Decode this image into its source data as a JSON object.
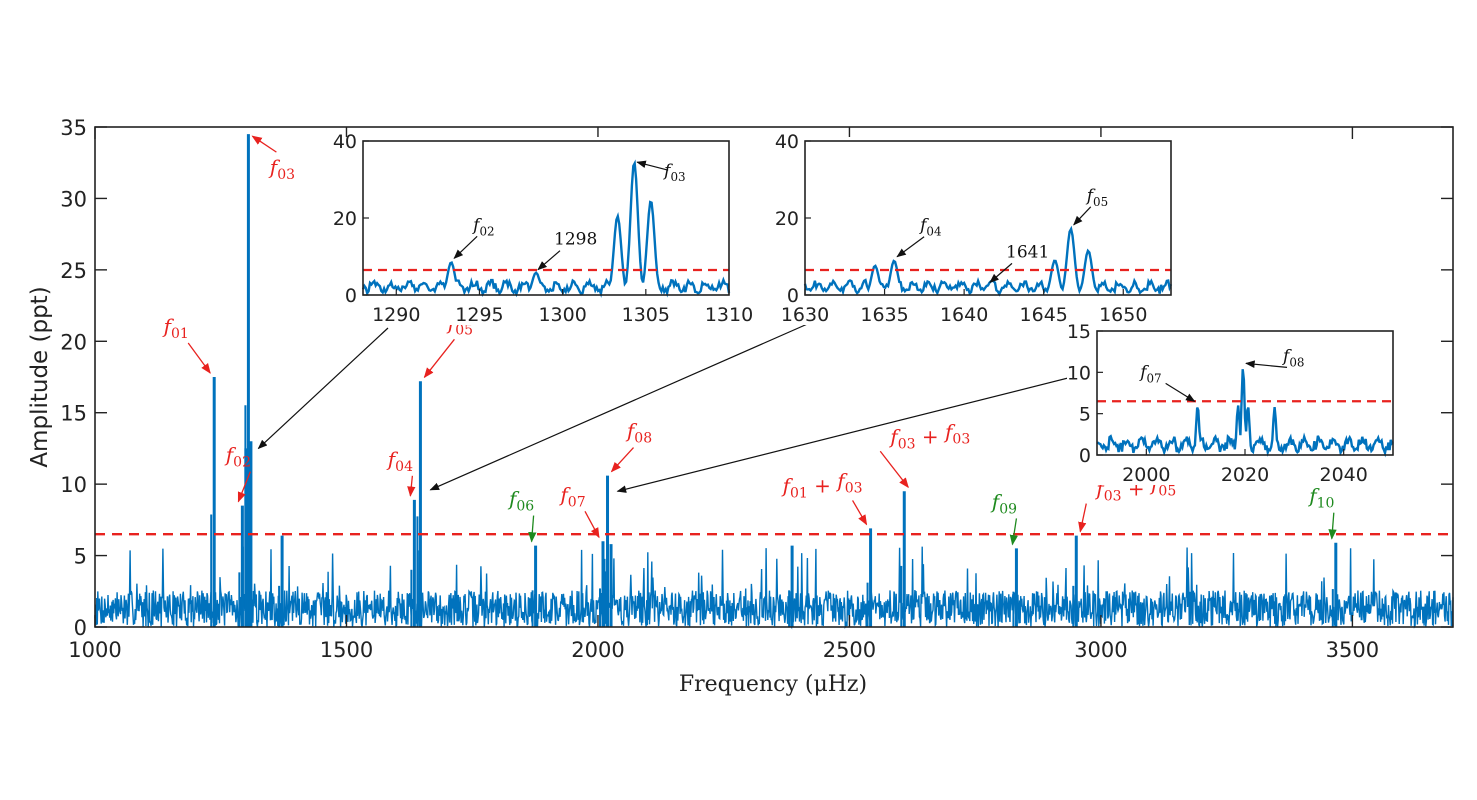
{
  "chart_data": {
    "type": "line",
    "xlabel": "Frequency (μHz)",
    "ylabel": "Amplitude (ppt)",
    "xlim": [
      1000,
      3700
    ],
    "ylim": [
      0,
      35
    ],
    "xticks": [
      1000,
      1500,
      2000,
      2500,
      3000,
      3500
    ],
    "yticks": [
      0,
      5,
      10,
      15,
      20,
      25,
      30,
      35
    ],
    "threshold": 6.5,
    "line_color": "#0072BD",
    "threshold_color": "#E8221F",
    "noise_level": 1.6,
    "peaks": [
      {
        "x": 1237,
        "y": 17.5
      },
      {
        "x": 1293,
        "y": 8.5
      },
      {
        "x": 1305,
        "y": 34.5
      },
      {
        "x": 1300,
        "y": 12.5
      },
      {
        "x": 1310,
        "y": 13.0
      },
      {
        "x": 1372,
        "y": 6.4
      },
      {
        "x": 1635,
        "y": 8.9
      },
      {
        "x": 1647,
        "y": 17.2
      },
      {
        "x": 1876,
        "y": 5.7
      },
      {
        "x": 2010,
        "y": 6.0
      },
      {
        "x": 2019,
        "y": 10.6
      },
      {
        "x": 2026,
        "y": 5.8
      },
      {
        "x": 2386,
        "y": 5.7
      },
      {
        "x": 2542,
        "y": 6.9
      },
      {
        "x": 2609,
        "y": 9.5
      },
      {
        "x": 2832,
        "y": 5.5
      },
      {
        "x": 2951,
        "y": 6.4
      },
      {
        "x": 3467,
        "y": 5.9
      }
    ],
    "annotations": [
      {
        "base": "f",
        "sub": "01",
        "color": "red",
        "x": 1237,
        "y": 17.5
      },
      {
        "base": "f",
        "sub": "02",
        "color": "red",
        "x": 1293,
        "y": 8.5
      },
      {
        "base": "f",
        "sub": "03",
        "color": "red",
        "x": 1305,
        "y": 34.5
      },
      {
        "base": "f",
        "sub": "04",
        "color": "red",
        "x": 1635,
        "y": 8.9
      },
      {
        "base": "f",
        "sub": "05",
        "color": "red",
        "x": 1647,
        "y": 17.2
      },
      {
        "base": "f",
        "sub": "06",
        "color": "green",
        "x": 1876,
        "y": 5.7
      },
      {
        "base": "f",
        "sub": "07",
        "color": "red",
        "x": 2010,
        "y": 6.0
      },
      {
        "base": "f",
        "sub": "08",
        "color": "red",
        "x": 2019,
        "y": 10.6
      },
      {
        "base": "f",
        "sub": "09",
        "color": "green",
        "x": 2832,
        "y": 5.5
      },
      {
        "base": "f",
        "sub": "10",
        "color": "green",
        "x": 3467,
        "y": 5.9
      }
    ],
    "combos": [
      {
        "parts": [
          "f",
          "01",
          " + ",
          "f",
          "03"
        ],
        "x": 2542,
        "y": 6.9
      },
      {
        "parts": [
          "f",
          "03",
          " + ",
          "f",
          "03"
        ],
        "x": 2609,
        "y": 9.5
      },
      {
        "parts": [
          "f",
          "03",
          " + ",
          "f",
          "05"
        ],
        "x": 2951,
        "y": 6.4
      }
    ],
    "insets": [
      {
        "name": "inset-1",
        "xlim": [
          1288,
          1310
        ],
        "ylim": [
          0,
          40
        ],
        "xticks": [
          1290,
          1295,
          1300,
          1305,
          1310
        ],
        "yticks": [
          0,
          20,
          40
        ],
        "threshold": 6.5,
        "peaks": [
          {
            "x": 1293.3,
            "y": 8.5
          },
          {
            "x": 1303.3,
            "y": 20.5
          },
          {
            "x": 1304.3,
            "y": 34.5
          },
          {
            "x": 1305.3,
            "y": 24.5
          },
          {
            "x": 1298.4,
            "y": 5.8
          }
        ],
        "labels": [
          {
            "base": "f",
            "sub": "02",
            "x": 1293.3,
            "y": 8.5
          },
          {
            "base": "f",
            "sub": "03",
            "x": 1304.3,
            "y": 34.5
          }
        ],
        "number_labels": [
          {
            "text": "1298",
            "x": 1298.4,
            "y": 5.8
          }
        ]
      },
      {
        "name": "inset-2",
        "xlim": [
          1630,
          1653
        ],
        "ylim": [
          0,
          40
        ],
        "xticks": [
          1630,
          1635,
          1640,
          1645,
          1650
        ],
        "yticks": [
          0,
          20,
          40
        ],
        "threshold": 6.5,
        "peaks": [
          {
            "x": 1634.4,
            "y": 7.6
          },
          {
            "x": 1635.6,
            "y": 8.9
          },
          {
            "x": 1641.5,
            "y": 2.5
          },
          {
            "x": 1645.7,
            "y": 9.0
          },
          {
            "x": 1646.7,
            "y": 17.2
          },
          {
            "x": 1647.8,
            "y": 11.5
          }
        ],
        "labels": [
          {
            "base": "f",
            "sub": "04",
            "x": 1635.6,
            "y": 8.9
          },
          {
            "base": "f",
            "sub": "05",
            "x": 1646.7,
            "y": 17.2
          }
        ],
        "number_labels": [
          {
            "text": "1641",
            "x": 1641.5,
            "y": 2.5
          }
        ]
      },
      {
        "name": "inset-3",
        "xlim": [
          1990,
          2050
        ],
        "ylim": [
          0,
          15
        ],
        "xticks": [
          2000,
          2020,
          2040
        ],
        "yticks": [
          0,
          5,
          10,
          15
        ],
        "threshold": 6.5,
        "peaks": [
          {
            "x": 2010.4,
            "y": 6.0
          },
          {
            "x": 2019.6,
            "y": 10.6
          },
          {
            "x": 2018.6,
            "y": 6.0
          },
          {
            "x": 2020.6,
            "y": 6.0
          },
          {
            "x": 2026.0,
            "y": 5.8
          }
        ],
        "labels": [
          {
            "base": "f",
            "sub": "07",
            "x": 2010.4,
            "y": 6.0
          },
          {
            "base": "f",
            "sub": "08",
            "x": 2019.6,
            "y": 10.6
          }
        ],
        "number_labels": []
      }
    ]
  }
}
